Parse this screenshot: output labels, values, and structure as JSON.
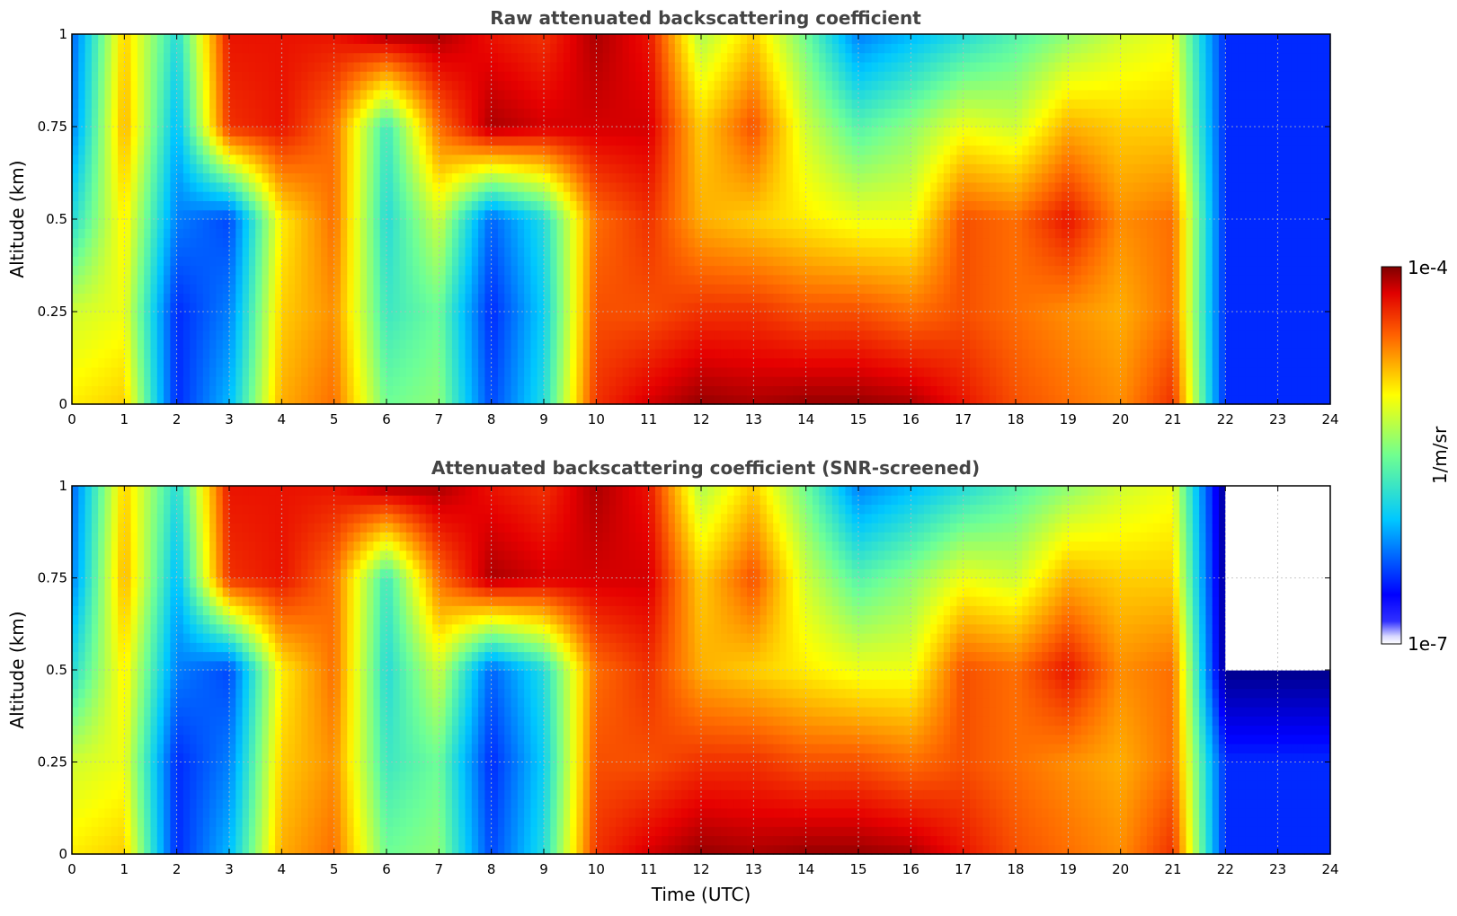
{
  "chart_data": [
    {
      "type": "heatmap",
      "title": "Raw attenuated backscattering coefficient",
      "xlabel": "",
      "ylabel": "Altitude (km)",
      "xlim": [
        0,
        24
      ],
      "ylim": [
        0,
        1
      ],
      "xticks": [
        "0",
        "1",
        "2",
        "3",
        "4",
        "5",
        "6",
        "7",
        "8",
        "9",
        "10",
        "11",
        "12",
        "13",
        "14",
        "15",
        "16",
        "17",
        "18",
        "19",
        "20",
        "21",
        "22",
        "23",
        "24"
      ],
      "yticks": [
        "0",
        "0.25",
        "0.5",
        "0.75",
        "1"
      ],
      "grid": true,
      "x": [
        0,
        1,
        2,
        3,
        4,
        5,
        6,
        7,
        8,
        9,
        10,
        11,
        12,
        13,
        14,
        15,
        16,
        17,
        18,
        19,
        20,
        21,
        22,
        23,
        24
      ],
      "y": [
        0,
        0.25,
        0.5,
        0.75,
        1
      ],
      "z_log10": [
        [
          -5.0,
          -4.9,
          -6.5,
          -6.0,
          -4.8,
          -4.6,
          -5.5,
          -5.4,
          -6.4,
          -5.8,
          -4.4,
          -4.2,
          -4.05,
          -4.1,
          -4.05,
          -4.05,
          -4.1,
          -4.3,
          -4.5,
          -4.6,
          -4.7,
          -4.4,
          -6.5,
          -6.5,
          -6.5
        ],
        [
          -5.2,
          -5.1,
          -6.5,
          -6.2,
          -4.9,
          -4.7,
          -5.7,
          -5.5,
          -6.5,
          -5.9,
          -4.5,
          -4.5,
          -4.4,
          -4.4,
          -4.5,
          -4.5,
          -4.6,
          -4.5,
          -4.6,
          -4.7,
          -4.8,
          -4.6,
          -6.5,
          -6.5,
          -6.5
        ],
        [
          -5.8,
          -5.0,
          -6.2,
          -6.4,
          -5.0,
          -4.6,
          -5.8,
          -5.2,
          -6.3,
          -5.8,
          -4.6,
          -4.4,
          -4.8,
          -4.9,
          -5.0,
          -5.1,
          -5.1,
          -4.5,
          -4.6,
          -4.3,
          -4.7,
          -4.6,
          -6.5,
          -6.5,
          -6.5
        ],
        [
          -6.2,
          -4.8,
          -6.0,
          -4.4,
          -4.3,
          -4.6,
          -5.7,
          -4.6,
          -4.1,
          -4.2,
          -4.2,
          -4.2,
          -4.9,
          -4.5,
          -5.2,
          -5.6,
          -5.4,
          -5.1,
          -5.2,
          -4.8,
          -4.9,
          -4.9,
          -6.5,
          -6.5,
          -6.5
        ],
        [
          -6.3,
          -4.9,
          -5.8,
          -4.3,
          -4.3,
          -4.3,
          -4.1,
          -4.1,
          -4.3,
          -4.4,
          -4.1,
          -4.3,
          -5.3,
          -4.9,
          -5.5,
          -6.2,
          -6.0,
          -5.8,
          -5.6,
          -5.4,
          -5.2,
          -5.1,
          -6.5,
          -6.5,
          -6.5
        ]
      ]
    },
    {
      "type": "heatmap",
      "title": "Attenuated backscattering coefficient (SNR-screened)",
      "xlabel": "Time (UTC)",
      "ylabel": "Altitude (km)",
      "xlim": [
        0,
        24
      ],
      "ylim": [
        0,
        1
      ],
      "xticks": [
        "0",
        "1",
        "2",
        "3",
        "4",
        "5",
        "6",
        "7",
        "8",
        "9",
        "10",
        "11",
        "12",
        "13",
        "14",
        "15",
        "16",
        "17",
        "18",
        "19",
        "20",
        "21",
        "22",
        "23",
        "24"
      ],
      "yticks": [
        "0",
        "0.25",
        "0.5",
        "0.75",
        "1"
      ],
      "grid": true,
      "x": [
        0,
        1,
        2,
        3,
        4,
        5,
        6,
        7,
        8,
        9,
        10,
        11,
        12,
        13,
        14,
        15,
        16,
        17,
        18,
        19,
        20,
        21,
        22,
        23,
        24
      ],
      "y": [
        0,
        0.25,
        0.5,
        0.75,
        1
      ],
      "z_log10": [
        [
          -5.0,
          -4.9,
          -6.5,
          -6.0,
          -4.8,
          -4.6,
          -5.5,
          -5.4,
          -6.4,
          -5.8,
          -4.4,
          -4.2,
          -4.05,
          -4.1,
          -4.05,
          -4.05,
          -4.1,
          -4.3,
          -4.5,
          -4.6,
          -4.7,
          -4.4,
          -6.5,
          -6.5,
          -6.5
        ],
        [
          -5.2,
          -5.1,
          -6.5,
          -6.2,
          -4.9,
          -4.7,
          -5.7,
          -5.5,
          -6.5,
          -5.9,
          -4.5,
          -4.5,
          -4.4,
          -4.4,
          -4.5,
          -4.5,
          -4.6,
          -4.5,
          -4.6,
          -4.7,
          -4.8,
          -4.6,
          -6.5,
          -6.5,
          -6.5
        ],
        [
          -5.8,
          -5.0,
          -6.2,
          -6.4,
          -5.0,
          -4.6,
          -5.8,
          -5.2,
          -6.3,
          -5.8,
          -4.6,
          -4.4,
          -4.8,
          -4.9,
          -5.0,
          -5.1,
          -5.1,
          -4.5,
          -4.6,
          -4.3,
          -4.7,
          -4.6,
          -7.0,
          -7.0,
          -7.0
        ],
        [
          -6.2,
          -4.8,
          -6.0,
          -4.4,
          -4.3,
          -4.6,
          -5.7,
          -4.6,
          -4.1,
          -4.2,
          -4.2,
          -4.2,
          -4.9,
          -4.5,
          -5.2,
          -5.6,
          -5.4,
          -5.1,
          -5.2,
          -4.8,
          -4.9,
          -4.9,
          -7.0,
          -7.0,
          -7.0
        ],
        [
          -6.3,
          -4.9,
          -5.8,
          -4.3,
          -4.3,
          -4.3,
          -4.1,
          -4.1,
          -4.3,
          -4.4,
          -4.1,
          -4.3,
          -5.3,
          -4.9,
          -5.5,
          -6.2,
          -6.0,
          -5.8,
          -5.6,
          -5.4,
          -5.2,
          -5.1,
          -7.0,
          -7.0,
          -7.0
        ]
      ]
    }
  ],
  "colorbar": {
    "label": "1/m/sr",
    "max_label": "1e-4",
    "min_label": "1e-7",
    "colormap": "jet",
    "scale": "log",
    "range": [
      1e-07,
      0.0001
    ]
  }
}
